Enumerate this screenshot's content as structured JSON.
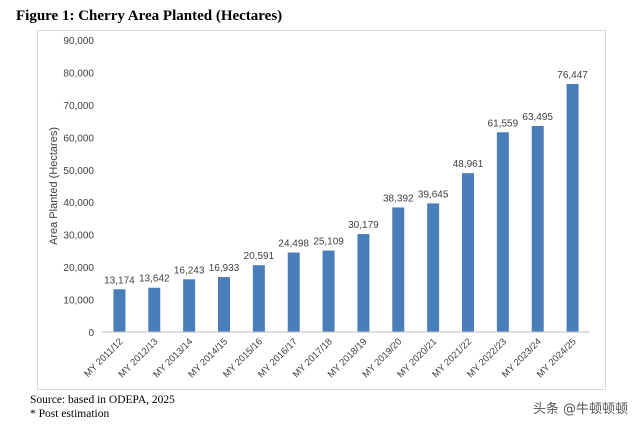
{
  "figure": {
    "title": "Figure 1: Cherry Area Planted (Hectares)",
    "source": "Source: based in ODEPA, 2025",
    "note": "* Post estimation"
  },
  "watermark": {
    "text": "头条 @牛顿顿顿"
  },
  "chart_data": {
    "type": "bar",
    "title": "",
    "xlabel": "",
    "ylabel": "Area Planted (Hectares)",
    "ylim": [
      0,
      90000
    ],
    "yticks": [
      0,
      10000,
      20000,
      30000,
      40000,
      50000,
      60000,
      70000,
      80000,
      90000
    ],
    "ytick_labels": [
      "0",
      "10,000",
      "20,000",
      "30,000",
      "40,000",
      "50,000",
      "60,000",
      "70,000",
      "80,000",
      "90,000"
    ],
    "grid": false,
    "bar_color": "#4a7ebb",
    "categories": [
      "MY 2011/12",
      "MY 2012/13",
      "MY 2013/14",
      "MY 2014/15",
      "MY 2015/16",
      "MY 2016/17",
      "MY 2017/18",
      "MY 2018/19",
      "MY 2019/20",
      "MY 2020/21",
      "MY 2021/22",
      "MY 2022/23",
      "MY 2023/24",
      "MY 2024/25"
    ],
    "values": [
      13174,
      13642,
      16243,
      16933,
      20591,
      24498,
      25109,
      30179,
      38392,
      39645,
      48961,
      61559,
      63495,
      76447
    ],
    "value_labels": [
      "13,174",
      "13,642",
      "16,243",
      "16,933",
      "20,591",
      "24,498",
      "25,109",
      "30,179",
      "38,392",
      "39,645",
      "48,961",
      "61,559",
      "63,495",
      "76,447"
    ]
  }
}
